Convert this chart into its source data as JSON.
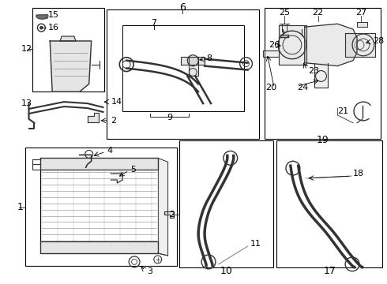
{
  "background": "#ffffff",
  "line_color": "#000000",
  "part_color": "#333333",
  "gray": "#888888",
  "light_gray": "#cccccc"
}
